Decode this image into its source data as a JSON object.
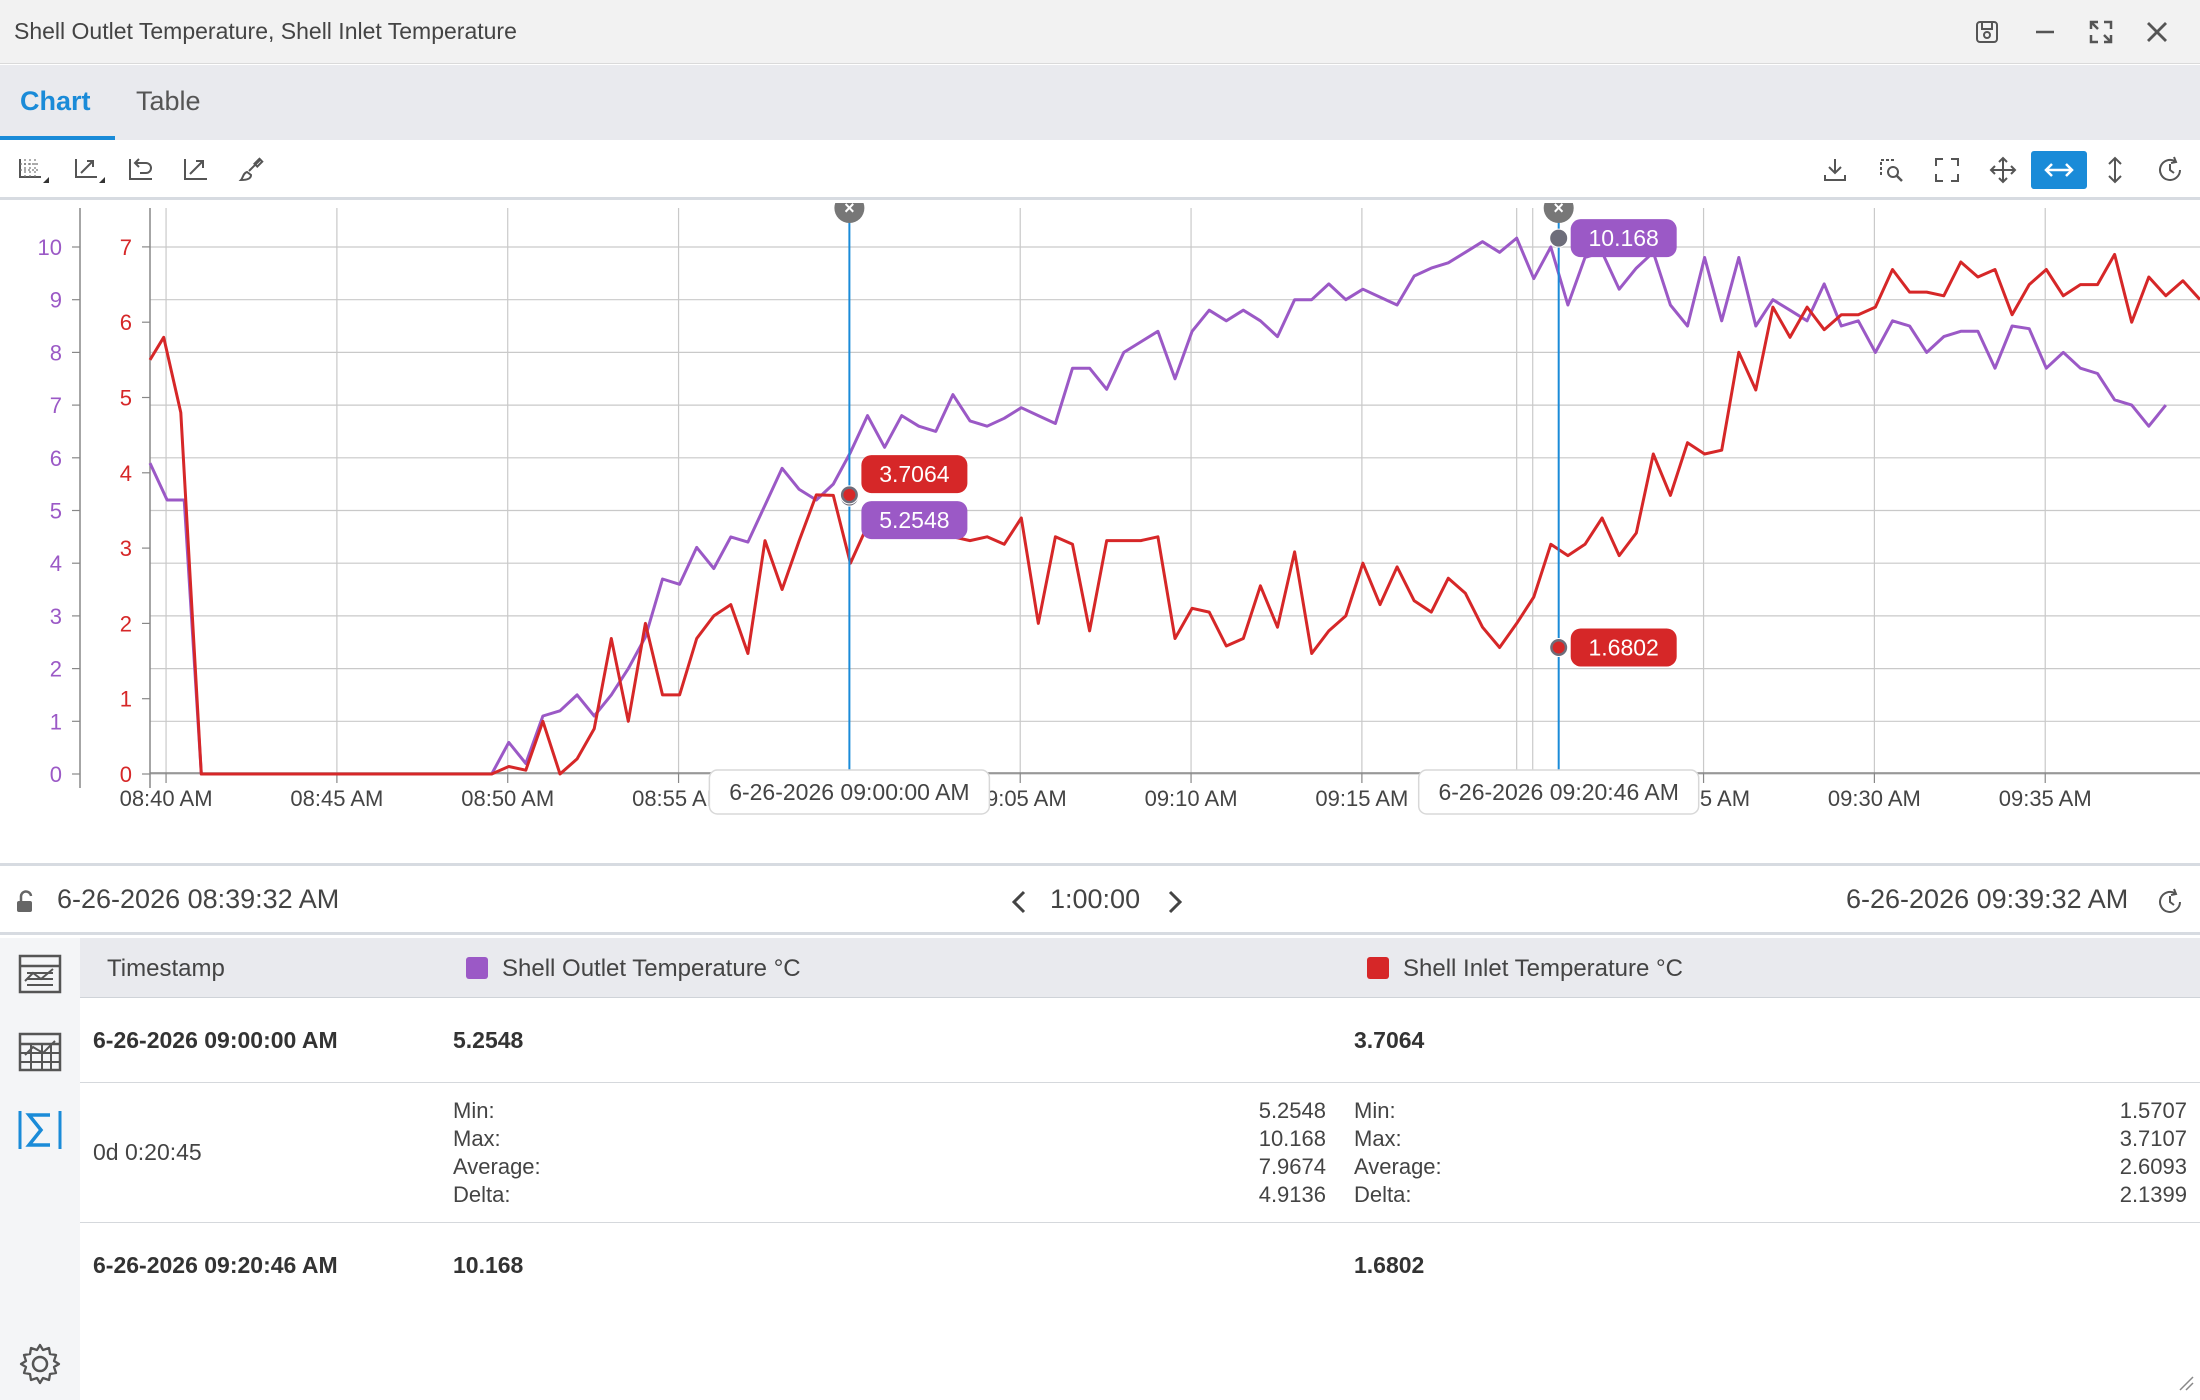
{
  "window": {
    "title": "Shell Outlet Temperature, Shell Inlet Temperature"
  },
  "tabs": [
    {
      "label": "Chart",
      "active": true
    },
    {
      "label": "Table",
      "active": false
    }
  ],
  "colors": {
    "accent": "#1a8bd8",
    "outlet": "#9b59c6",
    "inlet": "#d62728"
  },
  "chart_data": {
    "type": "line",
    "x_tick_labels": [
      "08:40 AM",
      "08:45 AM",
      "08:50 AM",
      "08:55 AM",
      "09:00 AM",
      "09:05 AM",
      "09:10 AM",
      "09:15 AM",
      "09:20 AM",
      "09:25 AM",
      "09:30 AM",
      "09:35 AM"
    ],
    "x_range": [
      "08:39:32",
      "09:39:32"
    ],
    "left_axes": {
      "outlet_ticks": [
        0,
        1,
        2,
        3,
        4,
        5,
        6,
        7,
        8,
        9,
        10
      ],
      "inlet_ticks": [
        0,
        1,
        2,
        3,
        4,
        5,
        6,
        7
      ]
    },
    "series": [
      {
        "name": "Shell Outlet Temperature",
        "unit": "°C",
        "minute": [
          0,
          0.5,
          1,
          1.5,
          2,
          4,
          8,
          10,
          10.5,
          11,
          11.5,
          12,
          12.5,
          13,
          13.5,
          14,
          14.5,
          15,
          15.5,
          16,
          16.5,
          17,
          17.5,
          18,
          18.5,
          19,
          19.5,
          20,
          20.5,
          21,
          21.5,
          22,
          22.5,
          23,
          23.5,
          24,
          24.5,
          25,
          25.5,
          26,
          26.5,
          27,
          27.5,
          28,
          28.5,
          29,
          29.5,
          30,
          30.5,
          31,
          31.5,
          32,
          32.5,
          33,
          33.5,
          34,
          34.5,
          35,
          35.5,
          36,
          36.5,
          37,
          37.5,
          38,
          38.5,
          39,
          39.5,
          40,
          40.5,
          41,
          41.5,
          42,
          42.5,
          43,
          43.5,
          44,
          44.5,
          45,
          45.5,
          46,
          46.5,
          47,
          47.5,
          48,
          48.5,
          49,
          49.5,
          50,
          50.5,
          51,
          51.5,
          52,
          52.5,
          53,
          53.5,
          54,
          54.5,
          55,
          55.5,
          56,
          56.5,
          57,
          57.5,
          58,
          58.5,
          59,
          59.5,
          60
        ],
        "values": [
          5.9,
          5.2,
          5.2,
          0,
          0,
          0,
          0,
          0,
          0.6,
          0.2,
          1.1,
          1.2,
          1.5,
          1.1,
          1.5,
          2,
          2.6,
          3.7,
          3.6,
          4.3,
          3.9,
          4.5,
          4.4,
          5.1,
          5.8,
          5.4,
          5.2,
          5.5,
          6.1,
          6.8,
          6.2,
          6.8,
          6.6,
          6.5,
          7.2,
          6.7,
          6.6,
          6.75,
          6.95,
          6.8,
          6.65,
          7.7,
          7.7,
          7.3,
          8.0,
          8.2,
          8.4,
          7.5,
          8.4,
          8.8,
          8.6,
          8.8,
          8.6,
          8.3,
          9.0,
          9.0,
          9.3,
          9.0,
          9.2,
          9.05,
          8.9,
          9.45,
          9.6,
          9.7,
          9.9,
          10.1,
          9.9,
          10.168,
          9.4,
          10.0,
          8.9,
          9.8,
          9.9,
          9.2,
          9.6,
          9.9,
          8.9,
          8.5,
          9.8,
          8.6,
          9.8,
          8.5,
          9.0,
          8.8,
          8.6,
          9.3,
          8.5,
          8.6,
          8.0,
          8.6,
          8.5,
          8.0,
          8.3,
          8.4,
          8.4,
          7.7,
          8.5,
          8.45,
          7.7,
          8.0,
          7.7,
          7.6,
          7.1,
          7.0,
          6.6,
          7.0
        ]
      },
      {
        "name": "Shell Inlet Temperature",
        "unit": "°C",
        "minute": [
          0,
          0.4,
          0.9,
          1.5,
          2,
          4,
          8,
          10,
          10.5,
          11,
          11.5,
          12,
          12.5,
          13,
          13.5,
          14,
          14.5,
          15,
          15.5,
          16,
          16.5,
          17,
          17.5,
          18,
          18.5,
          19,
          19.5,
          20,
          20.5,
          21,
          21.5,
          22,
          22.5,
          23,
          23.5,
          24,
          24.5,
          25,
          25.5,
          26,
          26.5,
          27,
          27.5,
          28,
          28.5,
          29,
          29.5,
          30,
          30.5,
          31,
          31.5,
          32,
          32.5,
          33,
          33.5,
          34,
          34.5,
          35,
          35.5,
          36,
          36.5,
          37,
          37.5,
          38,
          38.5,
          39,
          39.5,
          40,
          40.5,
          41,
          41.5,
          42,
          42.5,
          43,
          43.5,
          44,
          44.5,
          45,
          45.5,
          46,
          46.5,
          47,
          47.5,
          48,
          48.5,
          49,
          49.5,
          50,
          50.5,
          51,
          51.5,
          52,
          52.5,
          53,
          53.5,
          54,
          54.5,
          55,
          55.5,
          56,
          56.5,
          57,
          57.5,
          58,
          58.5,
          59,
          59.5,
          60
        ],
        "values": [
          5.5,
          5.8,
          4.8,
          0,
          0,
          0,
          0,
          0,
          0.1,
          0.05,
          0.7,
          0,
          0.2,
          0.6,
          1.8,
          0.7,
          2.0,
          1.05,
          1.05,
          1.8,
          2.1,
          2.25,
          1.6,
          3.1,
          2.45,
          3.1,
          3.7064,
          3.7,
          2.8,
          3.3,
          3.2,
          3.15,
          3.2,
          3.25,
          3.15,
          3.1,
          3.15,
          3.05,
          3.4,
          2.0,
          3.15,
          3.05,
          1.9,
          3.1,
          3.1,
          3.1,
          3.15,
          1.8,
          2.2,
          2.15,
          1.7,
          1.8,
          2.5,
          1.95,
          2.95,
          1.6,
          1.9,
          2.1,
          2.8,
          2.25,
          2.75,
          2.3,
          2.15,
          2.6,
          2.4,
          1.95,
          1.6802,
          2.0,
          2.35,
          3.05,
          2.9,
          3.05,
          3.4,
          2.9,
          3.2,
          4.25,
          3.7,
          4.4,
          4.25,
          4.3,
          5.6,
          5.1,
          6.2,
          5.8,
          6.2,
          5.9,
          6.1,
          6.1,
          6.2,
          6.7,
          6.4,
          6.4,
          6.35,
          6.8,
          6.6,
          6.7,
          6.1,
          6.5,
          6.7,
          6.35,
          6.5,
          6.5,
          6.9,
          6.0,
          6.6,
          6.35,
          6.55,
          6.3
        ]
      }
    ],
    "cursors": [
      {
        "label": "6-26-2026 09:00:00 AM",
        "minute": 20.47,
        "outlet": "5.2548",
        "inlet": "3.7064"
      },
      {
        "label": "6-26-2026 09:20:46 AM",
        "minute": 41.23,
        "outlet": "10.168",
        "inlet": "1.6802"
      }
    ]
  },
  "timebar": {
    "start": "6-26-2026 08:39:32 AM",
    "duration": "1:00:00",
    "end": "6-26-2026 09:39:32 AM"
  },
  "table": {
    "headers": {
      "timestamp": "Timestamp",
      "outlet": "Shell Outlet Temperature °C",
      "inlet": "Shell Inlet Temperature °C"
    },
    "row1": {
      "timestamp": "6-26-2026 09:00:00 AM",
      "outlet": "5.2548",
      "inlet": "3.7064"
    },
    "stats": {
      "duration": "0d 0:20:45",
      "labels": [
        "Min:",
        "Max:",
        "Average:",
        "Delta:"
      ],
      "outlet": [
        "5.2548",
        "10.168",
        "7.9674",
        "4.9136"
      ],
      "inlet": [
        "1.5707",
        "3.7107",
        "2.6093",
        "2.1399"
      ]
    },
    "row2": {
      "timestamp": "6-26-2026 09:20:46 AM",
      "outlet": "10.168",
      "inlet": "1.6802"
    }
  }
}
